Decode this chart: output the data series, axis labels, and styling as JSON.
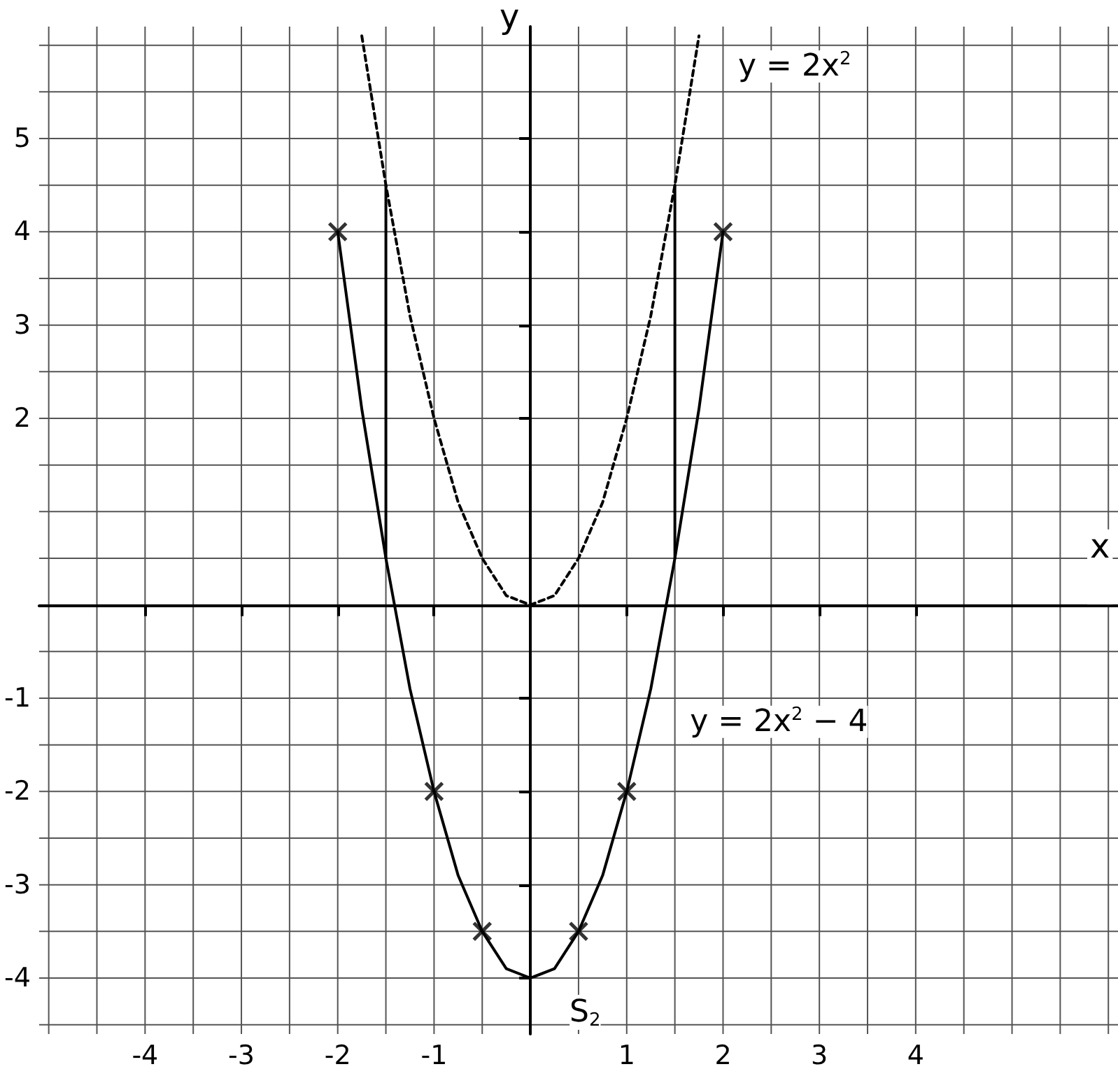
{
  "chart_data": {
    "type": "line",
    "xlabel": "x",
    "ylabel": "y",
    "xlim": [
      -5.1,
      6.1
    ],
    "ylim": [
      -4.6,
      6.2
    ],
    "xticks": [
      {
        "value": -5,
        "label": null
      },
      {
        "value": -4.5,
        "label": null
      },
      -4,
      {
        "value": -3.5,
        "label": null
      },
      -3,
      {
        "value": -2.5,
        "label": null
      },
      -2,
      {
        "value": -1.5,
        "label": null
      },
      -1,
      {
        "value": -0.5,
        "label": null
      },
      {
        "value": 0,
        "label": null
      },
      {
        "value": 0.5,
        "label": null
      },
      1,
      {
        "value": 1.5,
        "label": null
      },
      2,
      {
        "value": 2.5,
        "label": null
      },
      3,
      {
        "value": 3.5,
        "label": null
      },
      4,
      {
        "value": 4.5,
        "label": null
      },
      {
        "value": 5,
        "label": null
      },
      {
        "value": 5.5,
        "label": null
      },
      {
        "value": 6,
        "label": null
      }
    ],
    "yticks": [
      {
        "value": -4.5,
        "label": null
      },
      -4,
      {
        "value": -3.5,
        "label": null
      },
      -3,
      {
        "value": -2.5,
        "label": null
      },
      -2,
      {
        "value": -1.5,
        "label": null
      },
      -1,
      {
        "value": -0.5,
        "label": null
      },
      {
        "value": 0,
        "label": null
      },
      {
        "value": 0.5,
        "label": null
      },
      {
        "value": 1,
        "label": null
      },
      {
        "value": 1.5,
        "label": null
      },
      2,
      {
        "value": 2.5,
        "label": null
      },
      3,
      {
        "value": 3.5,
        "label": null
      },
      4,
      {
        "value": 4.5,
        "label": null
      },
      5,
      {
        "value": 5.5,
        "label": null
      },
      {
        "value": 6,
        "label": null
      }
    ],
    "grid": true,
    "series": [
      {
        "color": "#000000",
        "line_style": "dashed",
        "marker": "none",
        "x": [
          -1.75,
          -1.5,
          -1.25,
          -1,
          -0.75,
          -0.5,
          -0.25,
          0,
          0.25,
          0.5,
          0.75,
          1,
          1.25,
          1.5,
          1.75
        ],
        "values": [
          6.1,
          4.5,
          3.1,
          2,
          1.1,
          0.5,
          0.1,
          0,
          0.1,
          0.5,
          1.1,
          2,
          3.1,
          4.5,
          6.1
        ]
      },
      {
        "color": "#000000",
        "line_style": "solid",
        "marker": "none",
        "x": [
          -2,
          -1.75,
          -1.5,
          -1.25,
          -1,
          -0.75,
          -0.5,
          -0.25,
          0,
          0.25,
          0.5,
          0.75,
          1,
          1.25,
          1.5,
          1.75,
          2
        ],
        "values": [
          4,
          2.1,
          0.5,
          -0.9,
          -2,
          -2.9,
          -3.5,
          -3.9,
          -4,
          -3.9,
          -3.5,
          -2.9,
          -2,
          -0.9,
          0.5,
          2.1,
          4
        ]
      },
      {
        "type": "scatter",
        "color": "#000000",
        "marker": "cross",
        "x": [
          -2,
          -1,
          -0.5,
          0.5,
          1,
          2
        ],
        "values": [
          4,
          -2,
          -3.5,
          -3.5,
          -2,
          4
        ]
      },
      {
        "color": "#000000",
        "line_style": "solid",
        "marker": "none",
        "x": [
          -1.5,
          -1.5
        ],
        "values": [
          4.5,
          0.5
        ]
      },
      {
        "color": "#000000",
        "line_style": "solid",
        "marker": "none",
        "x": [
          1.5,
          1.5
        ],
        "values": [
          4.5,
          0.5
        ]
      }
    ],
    "annotations": [
      {
        "text": "y = 2x$^{2}$",
        "x": 1.75,
        "y": 6.125
      },
      {
        "text": "y = 2x$^{2}$ − 4",
        "x": 1.25,
        "y": -0.9
      },
      {
        "text": "S$_{2}$",
        "x": 0,
        "y": -4
      }
    ]
  }
}
